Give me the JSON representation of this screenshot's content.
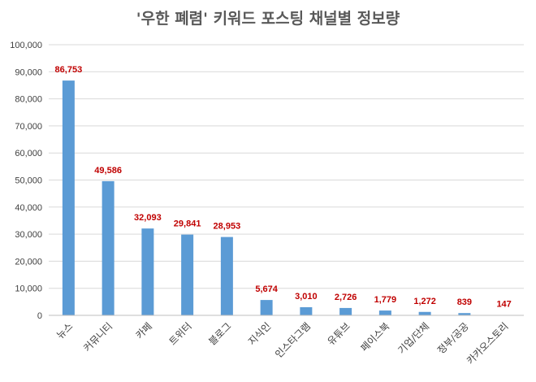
{
  "chart_data": {
    "type": "bar",
    "title": "'우한 폐렴' 키워드 포스팅 채널별 정보량",
    "xlabel": "",
    "ylabel": "",
    "categories": [
      "뉴스",
      "커뮤니티",
      "카페",
      "트위터",
      "블로그",
      "지식인",
      "인스타그램",
      "유튜브",
      "페이스북",
      "기업/단체",
      "정부/공공",
      "카카오스토리"
    ],
    "values": [
      86753,
      49586,
      32093,
      29841,
      28953,
      5674,
      3010,
      2726,
      1779,
      1272,
      839,
      147
    ],
    "data_labels": [
      "86,753",
      "49,586",
      "32,093",
      "29,841",
      "28,953",
      "5,674",
      "3,010",
      "2,726",
      "1,779",
      "1,272",
      "839",
      "147"
    ],
    "ylim": [
      0,
      100000
    ],
    "yticks": [
      0,
      10000,
      20000,
      30000,
      40000,
      50000,
      60000,
      70000,
      80000,
      90000,
      100000
    ],
    "ytick_labels": [
      "0",
      "10,000",
      "20,000",
      "30,000",
      "40,000",
      "50,000",
      "60,000",
      "70,000",
      "80,000",
      "90,000",
      "100,000"
    ],
    "grid": true,
    "legend": "none",
    "bar_color": "#5b9bd5",
    "label_color": "#c00000"
  }
}
